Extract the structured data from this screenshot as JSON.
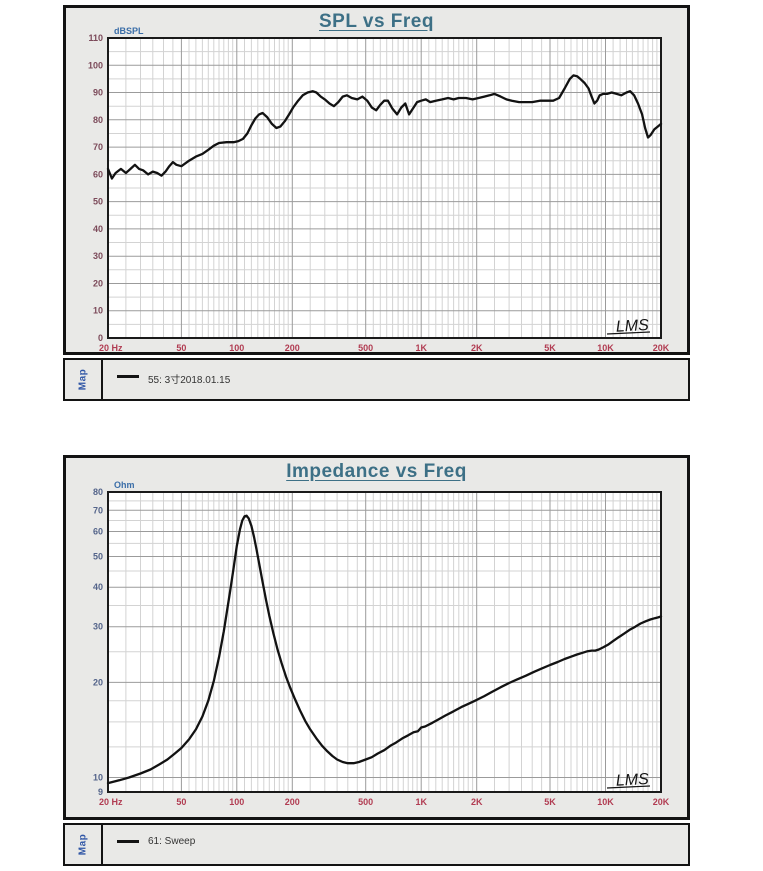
{
  "ui": {
    "map_tab_label": "Map"
  },
  "chart_data": [
    {
      "type": "line",
      "title": "SPL vs Freq",
      "ylabel": "dBSPL",
      "xlabel": "Hz",
      "x_scale": "log",
      "y_scale": "linear",
      "xlim": [
        20,
        20000
      ],
      "ylim": [
        0,
        110
      ],
      "grid": true,
      "legend_position": "bottom",
      "annotation": "LMS",
      "x_tick_values": [
        20,
        50,
        100,
        200,
        500,
        1000,
        2000,
        5000,
        10000,
        20000
      ],
      "x_tick_labels": [
        "20 Hz",
        "50",
        "100",
        "200",
        "500",
        "1K",
        "2K",
        "5K",
        "10K",
        "20K"
      ],
      "x_minor_values": [
        25,
        30,
        35,
        40,
        45,
        55,
        60,
        65,
        70,
        75,
        80,
        85,
        90,
        95,
        110,
        120,
        130,
        140,
        150,
        160,
        170,
        180,
        190,
        250,
        300,
        350,
        400,
        450,
        550,
        600,
        650,
        700,
        750,
        800,
        850,
        900,
        950,
        1100,
        1200,
        1300,
        1400,
        1500,
        1600,
        1700,
        1800,
        1900,
        2500,
        3000,
        3500,
        4000,
        4500,
        5500,
        6000,
        6500,
        7000,
        7500,
        8000,
        8500,
        9000,
        9500,
        11000,
        12000,
        13000,
        14000,
        15000,
        16000,
        17000,
        18000,
        19000
      ],
      "y_label_ticks": [
        0,
        10,
        20,
        30,
        40,
        50,
        60,
        70,
        80,
        90,
        100,
        110
      ],
      "y_grid_ticks": [
        10,
        20,
        30,
        40,
        50,
        60,
        70,
        80,
        90,
        100
      ],
      "y_minor_ticks": [
        5,
        15,
        25,
        35,
        45,
        55,
        65,
        75,
        85,
        95,
        105
      ],
      "colors": {
        "plot_bg": "#ffffff",
        "frame": "#1a1a1a",
        "grid_major": "#9b9b9b",
        "grid_minor": "#d3d3d3",
        "curve": "#121212",
        "x_tick": "#b13c52",
        "y_tick": "#7c4a5a",
        "unit": "#3b6ea8",
        "title": "#3d7086"
      },
      "series": [
        {
          "name": "55: 3寸2018.01.15",
          "points": [
            [
              20,
              62
            ],
            [
              21,
              58.5
            ],
            [
              22,
              60.5
            ],
            [
              23.5,
              62
            ],
            [
              25,
              60.5
            ],
            [
              26.5,
              62
            ],
            [
              28,
              63.5
            ],
            [
              29.5,
              62
            ],
            [
              31,
              61.5
            ],
            [
              33,
              60
            ],
            [
              35,
              61
            ],
            [
              37,
              60.5
            ],
            [
              39,
              59.5
            ],
            [
              41,
              61
            ],
            [
              43,
              63
            ],
            [
              45,
              64.5
            ],
            [
              47,
              63.5
            ],
            [
              50,
              63
            ],
            [
              55,
              65
            ],
            [
              60,
              66.5
            ],
            [
              65,
              67.5
            ],
            [
              70,
              69
            ],
            [
              75,
              70.5
            ],
            [
              80,
              71.5
            ],
            [
              88,
              71.8
            ],
            [
              96,
              71.8
            ],
            [
              102,
              72.2
            ],
            [
              108,
              73
            ],
            [
              114,
              75
            ],
            [
              120,
              78
            ],
            [
              126,
              80.5
            ],
            [
              132,
              82
            ],
            [
              138,
              82.5
            ],
            [
              146,
              81
            ],
            [
              155,
              78.5
            ],
            [
              164,
              77
            ],
            [
              172,
              77.5
            ],
            [
              182,
              79.5
            ],
            [
              192,
              82
            ],
            [
              202,
              84.5
            ],
            [
              215,
              87
            ],
            [
              228,
              89
            ],
            [
              242,
              90
            ],
            [
              258,
              90.5
            ],
            [
              270,
              90
            ],
            [
              285,
              88.5
            ],
            [
              300,
              87.5
            ],
            [
              318,
              86
            ],
            [
              336,
              85
            ],
            [
              355,
              86.5
            ],
            [
              375,
              88.5
            ],
            [
              395,
              89
            ],
            [
              420,
              88
            ],
            [
              450,
              87.5
            ],
            [
              480,
              88.5
            ],
            [
              510,
              87
            ],
            [
              540,
              84.5
            ],
            [
              570,
              83.5
            ],
            [
              600,
              85.5
            ],
            [
              630,
              87
            ],
            [
              660,
              87
            ],
            [
              700,
              84
            ],
            [
              740,
              82
            ],
            [
              780,
              84.5
            ],
            [
              820,
              86
            ],
            [
              860,
              82
            ],
            [
              900,
              84
            ],
            [
              950,
              86.5
            ],
            [
              1000,
              87
            ],
            [
              1060,
              87.5
            ],
            [
              1120,
              86.5
            ],
            [
              1200,
              87
            ],
            [
              1300,
              87.5
            ],
            [
              1400,
              88
            ],
            [
              1500,
              87.5
            ],
            [
              1600,
              88
            ],
            [
              1750,
              88
            ],
            [
              1900,
              87.5
            ],
            [
              2050,
              88
            ],
            [
              2200,
              88.5
            ],
            [
              2350,
              89
            ],
            [
              2500,
              89.5
            ],
            [
              2700,
              88.5
            ],
            [
              2900,
              87.5
            ],
            [
              3100,
              87
            ],
            [
              3400,
              86.5
            ],
            [
              3700,
              86.5
            ],
            [
              4000,
              86.5
            ],
            [
              4400,
              87
            ],
            [
              4800,
              87
            ],
            [
              5200,
              87
            ],
            [
              5600,
              88
            ],
            [
              6000,
              91.5
            ],
            [
              6400,
              95
            ],
            [
              6700,
              96.3
            ],
            [
              7000,
              96
            ],
            [
              7300,
              95
            ],
            [
              7700,
              93.5
            ],
            [
              8100,
              91.5
            ],
            [
              8400,
              88.5
            ],
            [
              8700,
              86
            ],
            [
              9000,
              87
            ],
            [
              9300,
              89
            ],
            [
              9700,
              89.5
            ],
            [
              10200,
              89.5
            ],
            [
              10800,
              90
            ],
            [
              11500,
              89.5
            ],
            [
              12200,
              89
            ],
            [
              13000,
              90
            ],
            [
              13600,
              90.5
            ],
            [
              14300,
              89
            ],
            [
              15000,
              86
            ],
            [
              15800,
              82
            ],
            [
              16400,
              77
            ],
            [
              17000,
              73.5
            ],
            [
              17600,
              74.5
            ],
            [
              18400,
              76.5
            ],
            [
              19200,
              77.5
            ],
            [
              20000,
              78.5
            ]
          ]
        }
      ]
    },
    {
      "type": "line",
      "title": "Impedance vs Freq",
      "ylabel": "Ohm",
      "xlabel": "Hz",
      "x_scale": "log",
      "y_scale": "log",
      "xlim": [
        20,
        20000
      ],
      "ylim": [
        9,
        80
      ],
      "grid": true,
      "legend_position": "bottom",
      "annotation": "LMS",
      "x_tick_values": [
        20,
        50,
        100,
        200,
        500,
        1000,
        2000,
        5000,
        10000,
        20000
      ],
      "x_tick_labels": [
        "20 Hz",
        "50",
        "100",
        "200",
        "500",
        "1K",
        "2K",
        "5K",
        "10K",
        "20K"
      ],
      "x_minor_values": [
        25,
        30,
        35,
        40,
        45,
        55,
        60,
        65,
        70,
        75,
        80,
        85,
        90,
        95,
        110,
        120,
        130,
        140,
        150,
        160,
        170,
        180,
        190,
        250,
        300,
        350,
        400,
        450,
        550,
        600,
        650,
        700,
        750,
        800,
        850,
        900,
        950,
        1100,
        1200,
        1300,
        1400,
        1500,
        1600,
        1700,
        1800,
        1900,
        2500,
        3000,
        3500,
        4000,
        4500,
        5500,
        6000,
        6500,
        7000,
        7500,
        8000,
        8500,
        9000,
        9500,
        11000,
        12000,
        13000,
        14000,
        15000,
        16000,
        17000,
        18000,
        19000
      ],
      "y_label_ticks": [
        9,
        10,
        20,
        30,
        40,
        50,
        60,
        70,
        80
      ],
      "y_grid_ticks": [
        10,
        20,
        30,
        40,
        50,
        60,
        70
      ],
      "y_minor_ticks": [
        12.5,
        15,
        17.5,
        25,
        35,
        45,
        55,
        65,
        75
      ],
      "colors": {
        "plot_bg": "#ffffff",
        "frame": "#1a1a1a",
        "grid_major": "#9b9b9b",
        "grid_minor": "#d3d3d3",
        "curve": "#121212",
        "x_tick": "#b13c52",
        "y_tick": "#54648a",
        "unit": "#3b6ea8",
        "title": "#3d7086"
      },
      "series": [
        {
          "name": "61: Sweep",
          "points": [
            [
              20,
              9.6
            ],
            [
              23,
              9.8
            ],
            [
              26,
              10
            ],
            [
              30,
              10.3
            ],
            [
              34,
              10.6
            ],
            [
              38,
              11
            ],
            [
              42,
              11.4
            ],
            [
              46,
              11.9
            ],
            [
              50,
              12.4
            ],
            [
              55,
              13.2
            ],
            [
              60,
              14.2
            ],
            [
              65,
              15.6
            ],
            [
              70,
              17.5
            ],
            [
              75,
              20.2
            ],
            [
              80,
              24
            ],
            [
              85,
              29
            ],
            [
              88,
              33
            ],
            [
              92,
              39
            ],
            [
              96,
              46
            ],
            [
              100,
              54
            ],
            [
              104,
              61
            ],
            [
              107,
              65
            ],
            [
              110,
              67
            ],
            [
              113,
              67.3
            ],
            [
              116,
              66
            ],
            [
              120,
              62.5
            ],
            [
              124,
              57.5
            ],
            [
              128,
              52.5
            ],
            [
              133,
              46.5
            ],
            [
              138,
              41.5
            ],
            [
              144,
              36.5
            ],
            [
              150,
              32.5
            ],
            [
              158,
              28.5
            ],
            [
              166,
              25.5
            ],
            [
              175,
              23
            ],
            [
              185,
              20.8
            ],
            [
              195,
              19.2
            ],
            [
              205,
              17.9
            ],
            [
              220,
              16.3
            ],
            [
              235,
              15.1
            ],
            [
              250,
              14.2
            ],
            [
              270,
              13.3
            ],
            [
              290,
              12.6
            ],
            [
              310,
              12.1
            ],
            [
              330,
              11.7
            ],
            [
              350,
              11.4
            ],
            [
              375,
              11.2
            ],
            [
              400,
              11.1
            ],
            [
              430,
              11.1
            ],
            [
              460,
              11.2
            ],
            [
              500,
              11.4
            ],
            [
              540,
              11.6
            ],
            [
              580,
              11.9
            ],
            [
              630,
              12.2
            ],
            [
              680,
              12.6
            ],
            [
              730,
              12.9
            ],
            [
              790,
              13.3
            ],
            [
              850,
              13.6
            ],
            [
              910,
              13.9
            ],
            [
              960,
              14
            ],
            [
              1000,
              14.4
            ],
            [
              1050,
              14.5
            ],
            [
              1150,
              14.9
            ],
            [
              1250,
              15.3
            ],
            [
              1350,
              15.7
            ],
            [
              1500,
              16.2
            ],
            [
              1650,
              16.7
            ],
            [
              1800,
              17.1
            ],
            [
              2000,
              17.6
            ],
            [
              2200,
              18.1
            ],
            [
              2400,
              18.6
            ],
            [
              2700,
              19.3
            ],
            [
              3000,
              19.9
            ],
            [
              3300,
              20.4
            ],
            [
              3700,
              21
            ],
            [
              4100,
              21.6
            ],
            [
              4500,
              22.1
            ],
            [
              5000,
              22.7
            ],
            [
              5500,
              23.2
            ],
            [
              6000,
              23.7
            ],
            [
              6500,
              24.1
            ],
            [
              7000,
              24.5
            ],
            [
              7500,
              24.8
            ],
            [
              8000,
              25.1
            ],
            [
              8400,
              25.2
            ],
            [
              8800,
              25.2
            ],
            [
              9200,
              25.4
            ],
            [
              9700,
              25.8
            ],
            [
              10300,
              26.3
            ],
            [
              11000,
              27
            ],
            [
              11800,
              27.8
            ],
            [
              12600,
              28.5
            ],
            [
              13500,
              29.3
            ],
            [
              14500,
              30
            ],
            [
              15500,
              30.7
            ],
            [
              16500,
              31.2
            ],
            [
              17500,
              31.6
            ],
            [
              18500,
              31.9
            ],
            [
              19300,
              32.1
            ],
            [
              20000,
              32.3
            ]
          ]
        }
      ]
    }
  ]
}
